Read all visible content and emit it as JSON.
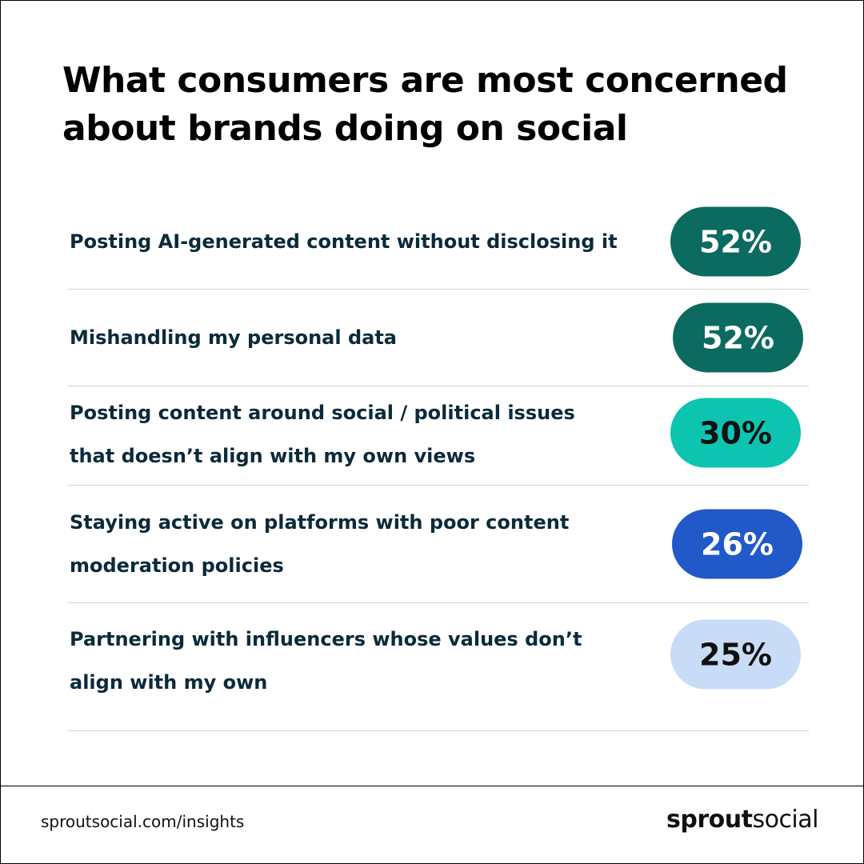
{
  "header": {
    "title": [
      "What consumers are most concerned",
      "about brands doing on social"
    ]
  },
  "items": [
    {
      "label": [
        "Posting AI-generated content without disclosing it"
      ],
      "value": "52%",
      "color": "#0c6b60",
      "text_color": "#ffffff"
    },
    {
      "label": [
        "Mishandling my personal data"
      ],
      "value": "52%",
      "color": "#0c6b60",
      "text_color": "#ffffff"
    },
    {
      "label": [
        "Posting content around social / political issues",
        "that doesn’t align with my own views"
      ],
      "value": "30%",
      "color": "#0cc4b0",
      "text_color": "#111111"
    },
    {
      "label": [
        "Staying active on platforms with poor content",
        "moderation policies"
      ],
      "value": "26%",
      "color": "#2159c9",
      "text_color": "#ffffff"
    },
    {
      "label": [
        "Partnering with influencers whose values don’t",
        "align with my own"
      ],
      "value": "25%",
      "color": "#c8dcf7",
      "text_color": "#111111"
    }
  ],
  "footer": {
    "url": "sproutsocial.com/insights",
    "brand_bold": "sprout",
    "brand_light": "social"
  }
}
